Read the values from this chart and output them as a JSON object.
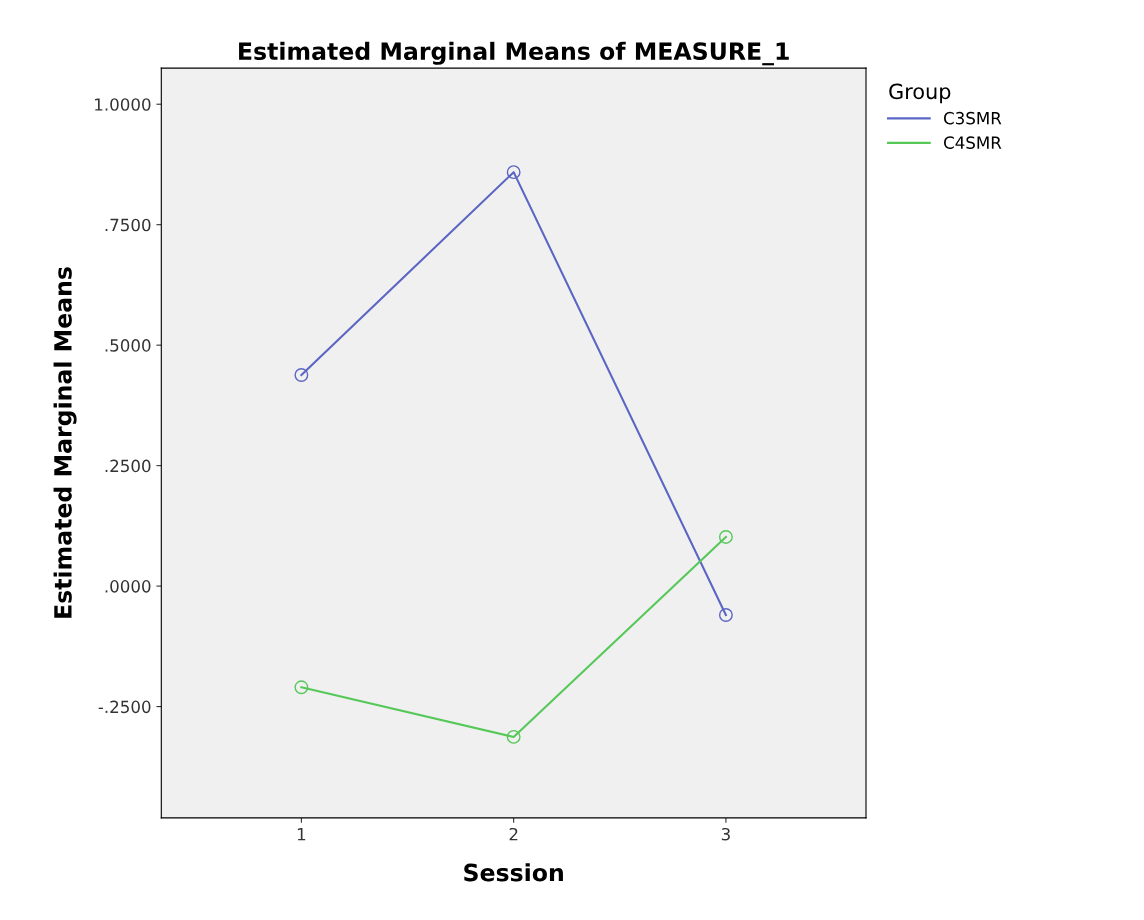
{
  "chart_data": {
    "type": "line",
    "title": "Estimated Marginal Means of MEASURE_1",
    "xlabel": "Session",
    "ylabel": "Estimated Marginal Means",
    "legend_title": "Group",
    "categories": [
      "1",
      "2",
      "3"
    ],
    "series": [
      {
        "name": "C3SMR",
        "color": "#5b66c4",
        "values": [
          0.438,
          0.859,
          -0.06
        ]
      },
      {
        "name": "C4SMR",
        "color": "#55c858",
        "values": [
          -0.21,
          -0.313,
          0.102
        ]
      }
    ],
    "ylim": [
      -0.481,
      1.075
    ],
    "yticks": [
      {
        "value": -0.25,
        "label": "-.2500"
      },
      {
        "value": 0,
        "label": ".0000"
      },
      {
        "value": 0.25,
        "label": ".2500"
      },
      {
        "value": 0.5,
        "label": ".5000"
      },
      {
        "value": 0.75,
        "label": ".7500"
      },
      {
        "value": 1.0,
        "label": "1.0000"
      }
    ],
    "marker": "circle",
    "line_style": "solid",
    "grid": false,
    "legend": "top right"
  }
}
